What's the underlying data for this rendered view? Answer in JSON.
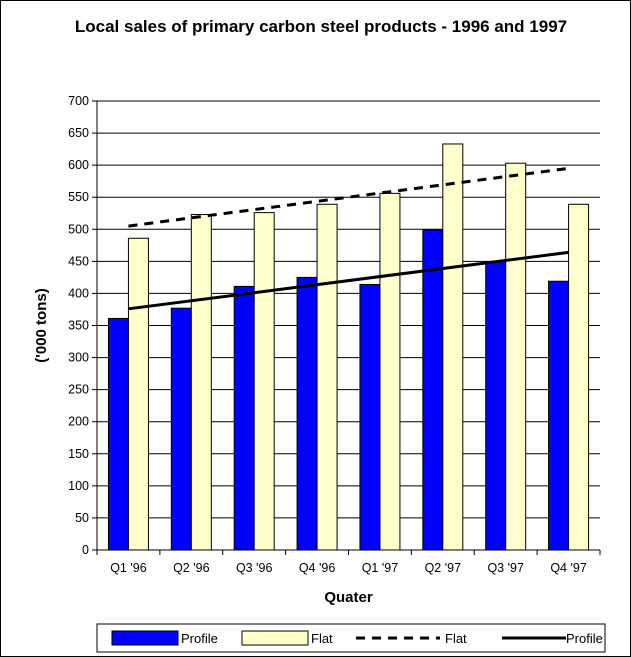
{
  "chart_data": {
    "type": "bar",
    "title": "Local sales of primary carbon steel products - 1996 and 1997",
    "xlabel": "Quater",
    "ylabel": "('000 tons)",
    "ylim": [
      0,
      700
    ],
    "yticks": [
      0,
      50,
      100,
      150,
      200,
      250,
      300,
      350,
      400,
      450,
      500,
      550,
      600,
      650,
      700
    ],
    "grid": true,
    "legend_position": "bottom",
    "categories": [
      "Q1 '96",
      "Q2 '96",
      "Q3 '96",
      "Q4 '96",
      "Q1 '97",
      "Q2 '97",
      "Q3 '97",
      "Q4 '97"
    ],
    "series": [
      {
        "name": "Profile",
        "kind": "bar",
        "color": "#0000FF",
        "values": [
          361,
          377,
          411,
          425,
          414,
          499,
          449,
          419
        ]
      },
      {
        "name": "Flat",
        "kind": "bar",
        "color": "#FFFFCC",
        "values": [
          486,
          523,
          526,
          539,
          556,
          633,
          603,
          539
        ]
      }
    ],
    "trendlines": [
      {
        "name": "Flat",
        "style": "dashed",
        "color": "#000000",
        "values": [
          505,
          518,
          531,
          544,
          556,
          569,
          582,
          595
        ]
      },
      {
        "name": "Profile",
        "style": "solid",
        "color": "#000000",
        "values": [
          376,
          389,
          401,
          414,
          426,
          439,
          451,
          464
        ]
      }
    ],
    "legend": [
      "Profile",
      "Flat",
      "Flat",
      "Profile"
    ]
  }
}
